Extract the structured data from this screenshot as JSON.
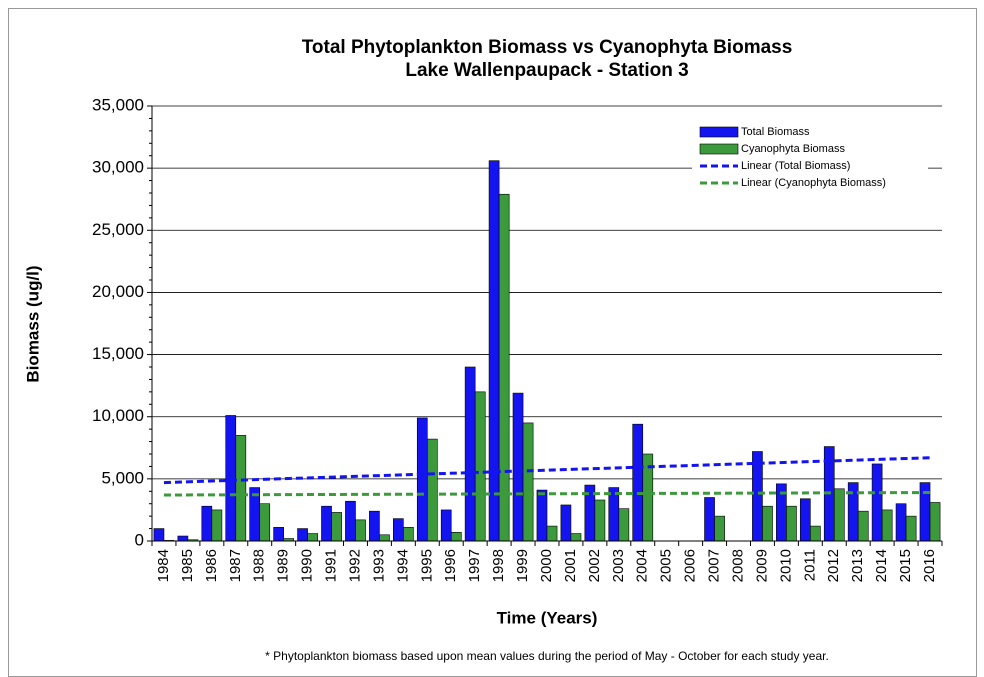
{
  "chart_data": {
    "type": "bar",
    "title": "Total Phytoplankton Biomass vs Cyanophyta Biomass",
    "subtitle": "Lake Wallenpaupack - Station 3",
    "x_label": "Time (Years)",
    "y_label": "Biomass (ug/l)",
    "footnote": "* Phytoplankton biomass based upon mean values during the period of May - October for each study year.",
    "categories": [
      "1984",
      "1985",
      "1986",
      "1987",
      "1988",
      "1989",
      "1990",
      "1991",
      "1992",
      "1993",
      "1994",
      "1995",
      "1996",
      "1997",
      "1998",
      "1999",
      "2000",
      "2001",
      "2002",
      "2003",
      "2004",
      "2005",
      "2006",
      "2007",
      "2008",
      "2009",
      "2010",
      "2011",
      "2012",
      "2013",
      "2014",
      "2015",
      "2016"
    ],
    "series": [
      {
        "name": "Total Biomass",
        "color": "#1414f0",
        "values": [
          1000,
          400,
          2800,
          10100,
          4300,
          1100,
          1000,
          2800,
          3200,
          2400,
          1800,
          9900,
          2500,
          14000,
          30600,
          11900,
          4100,
          2900,
          4500,
          4300,
          9400,
          null,
          null,
          3500,
          null,
          7200,
          4600,
          3400,
          7600,
          4700,
          6200,
          3000,
          4700
        ]
      },
      {
        "name": "Cyanophyta Biomass",
        "color": "#3c9a3c",
        "values": [
          50,
          100,
          2500,
          8500,
          3000,
          200,
          600,
          2300,
          1700,
          500,
          1100,
          8200,
          700,
          12000,
          27900,
          9500,
          1200,
          600,
          3300,
          2600,
          7000,
          null,
          null,
          2000,
          null,
          2800,
          2800,
          1200,
          4200,
          2400,
          2500,
          2000,
          3100
        ]
      }
    ],
    "trendlines": [
      {
        "name": "Linear (Total Biomass)",
        "color": "#1414f0",
        "start_value": 4700,
        "end_value": 6700
      },
      {
        "name": "Linear (Cyanophyta Biomass)",
        "color": "#3c9a3c",
        "start_value": 3700,
        "end_value": 3900
      }
    ],
    "ylim": [
      0,
      35000
    ],
    "yticks": [
      0,
      {
        "value": 5000,
        "label": "5,000"
      },
      {
        "value": 10000,
        "label": "10,000"
      },
      {
        "value": 15000,
        "label": "15,000"
      },
      {
        "value": 20000,
        "label": "20,000"
      },
      {
        "value": 25000,
        "label": "25,000"
      },
      {
        "value": 30000,
        "label": "30,000"
      },
      {
        "value": 35000,
        "label": "35,000"
      }
    ],
    "grid": true
  }
}
